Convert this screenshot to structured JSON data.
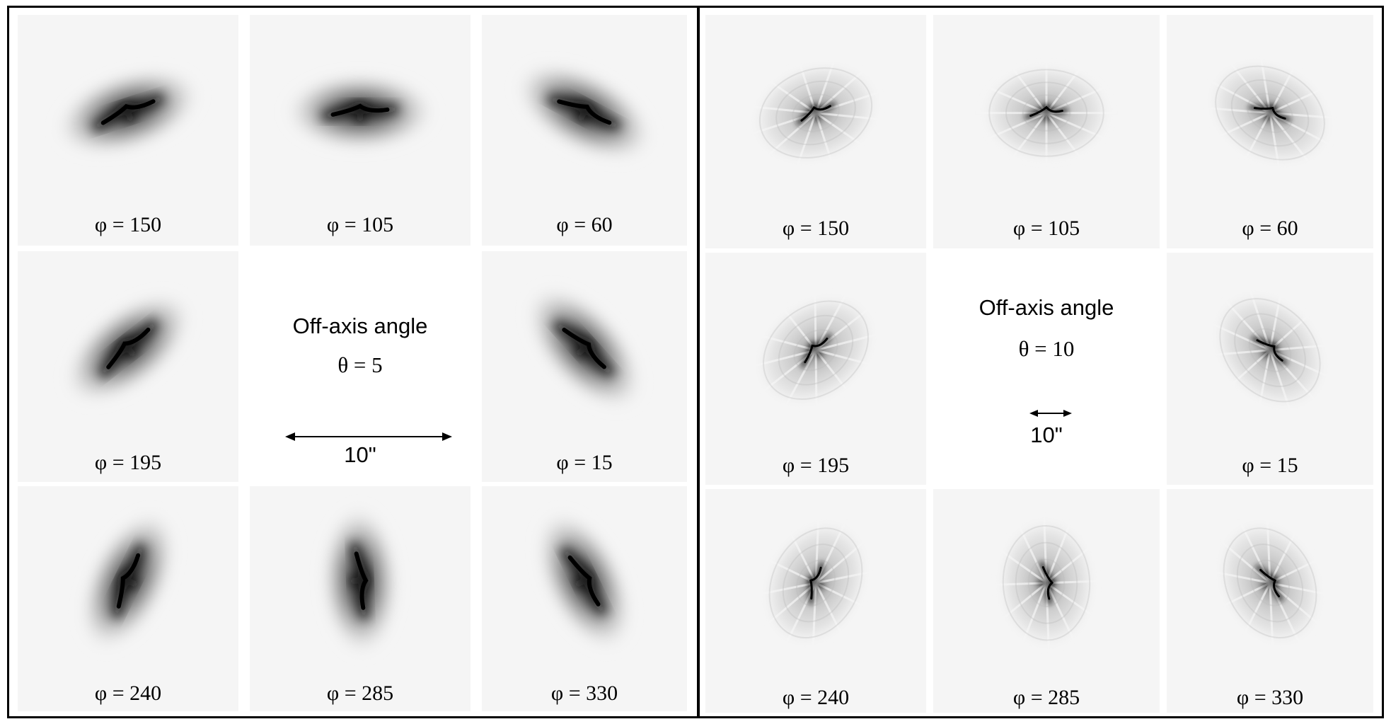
{
  "panels": [
    {
      "id": "left",
      "caption": "Off-axis angle",
      "theta_label": "θ = 5",
      "scale_label": "10\"",
      "style": "smooth",
      "cells": [
        {
          "label": "φ = 150",
          "angle": -18
        },
        {
          "label": "φ = 105",
          "angle": 0
        },
        {
          "label": "φ = 60",
          "angle": 28
        },
        {
          "label": "φ = 195",
          "angle": -38
        },
        null,
        {
          "label": "φ = 15",
          "angle": 48
        },
        {
          "label": "φ = 240",
          "angle": -64
        },
        {
          "label": "φ = 285",
          "angle": 88
        },
        {
          "label": "φ = 330",
          "angle": 64
        }
      ]
    },
    {
      "id": "right",
      "caption": "Off-axis angle",
      "theta_label": "θ = 10",
      "scale_label": "10\"",
      "style": "segmented",
      "cells": [
        {
          "label": "φ = 150",
          "angle": -18
        },
        {
          "label": "φ = 105",
          "angle": 0
        },
        {
          "label": "φ = 60",
          "angle": 28
        },
        {
          "label": "φ = 195",
          "angle": -38
        },
        null,
        {
          "label": "φ = 15",
          "angle": 48
        },
        {
          "label": "φ = 240",
          "angle": -64
        },
        {
          "label": "φ = 285",
          "angle": 88
        },
        {
          "label": "φ = 330",
          "angle": 64
        }
      ]
    }
  ]
}
